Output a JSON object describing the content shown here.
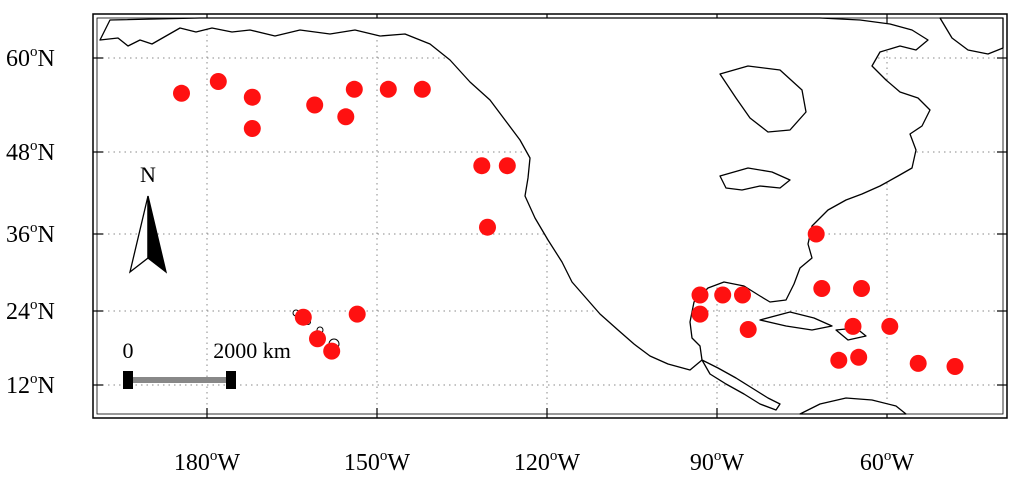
{
  "map": {
    "lat_ticks": [
      {
        "deg": "60",
        "sup": "o",
        "hem": "N",
        "value": 60
      },
      {
        "deg": "48",
        "sup": "o",
        "hem": "N",
        "value": 48
      },
      {
        "deg": "36",
        "sup": "o",
        "hem": "N",
        "value": 36
      },
      {
        "deg": "24",
        "sup": "o",
        "hem": "N",
        "value": 24
      },
      {
        "deg": "12",
        "sup": "o",
        "hem": "N",
        "value": 12
      }
    ],
    "lon_ticks": [
      {
        "deg": "180",
        "sup": "o",
        "hem": "W",
        "value": -180
      },
      {
        "deg": "150",
        "sup": "o",
        "hem": "W",
        "value": -150
      },
      {
        "deg": "120",
        "sup": "o",
        "hem": "W",
        "value": -120
      },
      {
        "deg": "90",
        "sup": "o",
        "hem": "W",
        "value": -90
      },
      {
        "deg": "60",
        "sup": "o",
        "hem": "W",
        "value": -60
      }
    ],
    "north_arrow_label": "N",
    "scale_bar": {
      "start_label": "0",
      "end_label": "2000 km",
      "length_km": 2000
    },
    "marker_color": "#ff1111",
    "coastline_color": "#000000",
    "grid_style": "dotted",
    "stations": [
      {
        "lon": 175.5,
        "lat": 55.5
      },
      {
        "lon": -178.0,
        "lat": 57.0
      },
      {
        "lon": -172.0,
        "lat": 55.0
      },
      {
        "lon": -172.0,
        "lat": 51.0
      },
      {
        "lon": -161.0,
        "lat": 54.0
      },
      {
        "lon": -155.5,
        "lat": 52.5
      },
      {
        "lon": -154.0,
        "lat": 56.0
      },
      {
        "lon": -148.0,
        "lat": 56.0
      },
      {
        "lon": -142.0,
        "lat": 56.0
      },
      {
        "lon": -131.5,
        "lat": 46.0
      },
      {
        "lon": -127.0,
        "lat": 46.0
      },
      {
        "lon": -130.5,
        "lat": 37.0
      },
      {
        "lon": -163.0,
        "lat": 23.0
      },
      {
        "lon": -153.5,
        "lat": 23.5
      },
      {
        "lon": -160.5,
        "lat": 19.5
      },
      {
        "lon": -158.0,
        "lat": 17.5
      },
      {
        "lon": -93.0,
        "lat": 26.5
      },
      {
        "lon": -89.0,
        "lat": 26.5
      },
      {
        "lon": -85.5,
        "lat": 26.5
      },
      {
        "lon": -93.0,
        "lat": 23.5
      },
      {
        "lon": -84.5,
        "lat": 21.0
      },
      {
        "lon": -72.5,
        "lat": 36.0
      },
      {
        "lon": -71.5,
        "lat": 27.5
      },
      {
        "lon": -64.5,
        "lat": 27.5
      },
      {
        "lon": -66.0,
        "lat": 21.5
      },
      {
        "lon": -59.5,
        "lat": 21.5
      },
      {
        "lon": -68.5,
        "lat": 16.0
      },
      {
        "lon": -65.0,
        "lat": 16.5
      },
      {
        "lon": -54.5,
        "lat": 15.5
      },
      {
        "lon": -48.0,
        "lat": 15.0
      }
    ]
  }
}
